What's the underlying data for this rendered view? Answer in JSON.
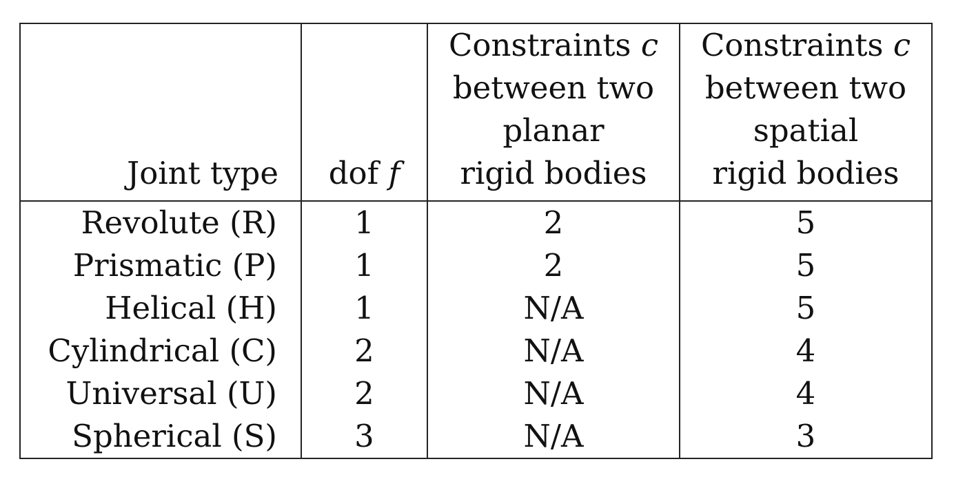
{
  "table": {
    "headers": {
      "joint_type": "Joint type",
      "dof": "dof",
      "dof_symbol": "f",
      "planar": [
        "Constraints",
        "between two",
        "planar",
        "rigid bodies"
      ],
      "planar_symbol": "c",
      "spatial": [
        "Constraints",
        "between two",
        "spatial",
        "rigid bodies"
      ],
      "spatial_symbol": "c"
    },
    "rows": [
      {
        "joint": "Revolute (R)",
        "dof": "1",
        "planar": "2",
        "spatial": "5"
      },
      {
        "joint": "Prismatic (P)",
        "dof": "1",
        "planar": "2",
        "spatial": "5"
      },
      {
        "joint": "Helical (H)",
        "dof": "1",
        "planar": "N/A",
        "spatial": "5"
      },
      {
        "joint": "Cylindrical (C)",
        "dof": "2",
        "planar": "N/A",
        "spatial": "4"
      },
      {
        "joint": "Universal (U)",
        "dof": "2",
        "planar": "N/A",
        "spatial": "4"
      },
      {
        "joint": "Spherical (S)",
        "dof": "3",
        "planar": "N/A",
        "spatial": "3"
      }
    ]
  }
}
